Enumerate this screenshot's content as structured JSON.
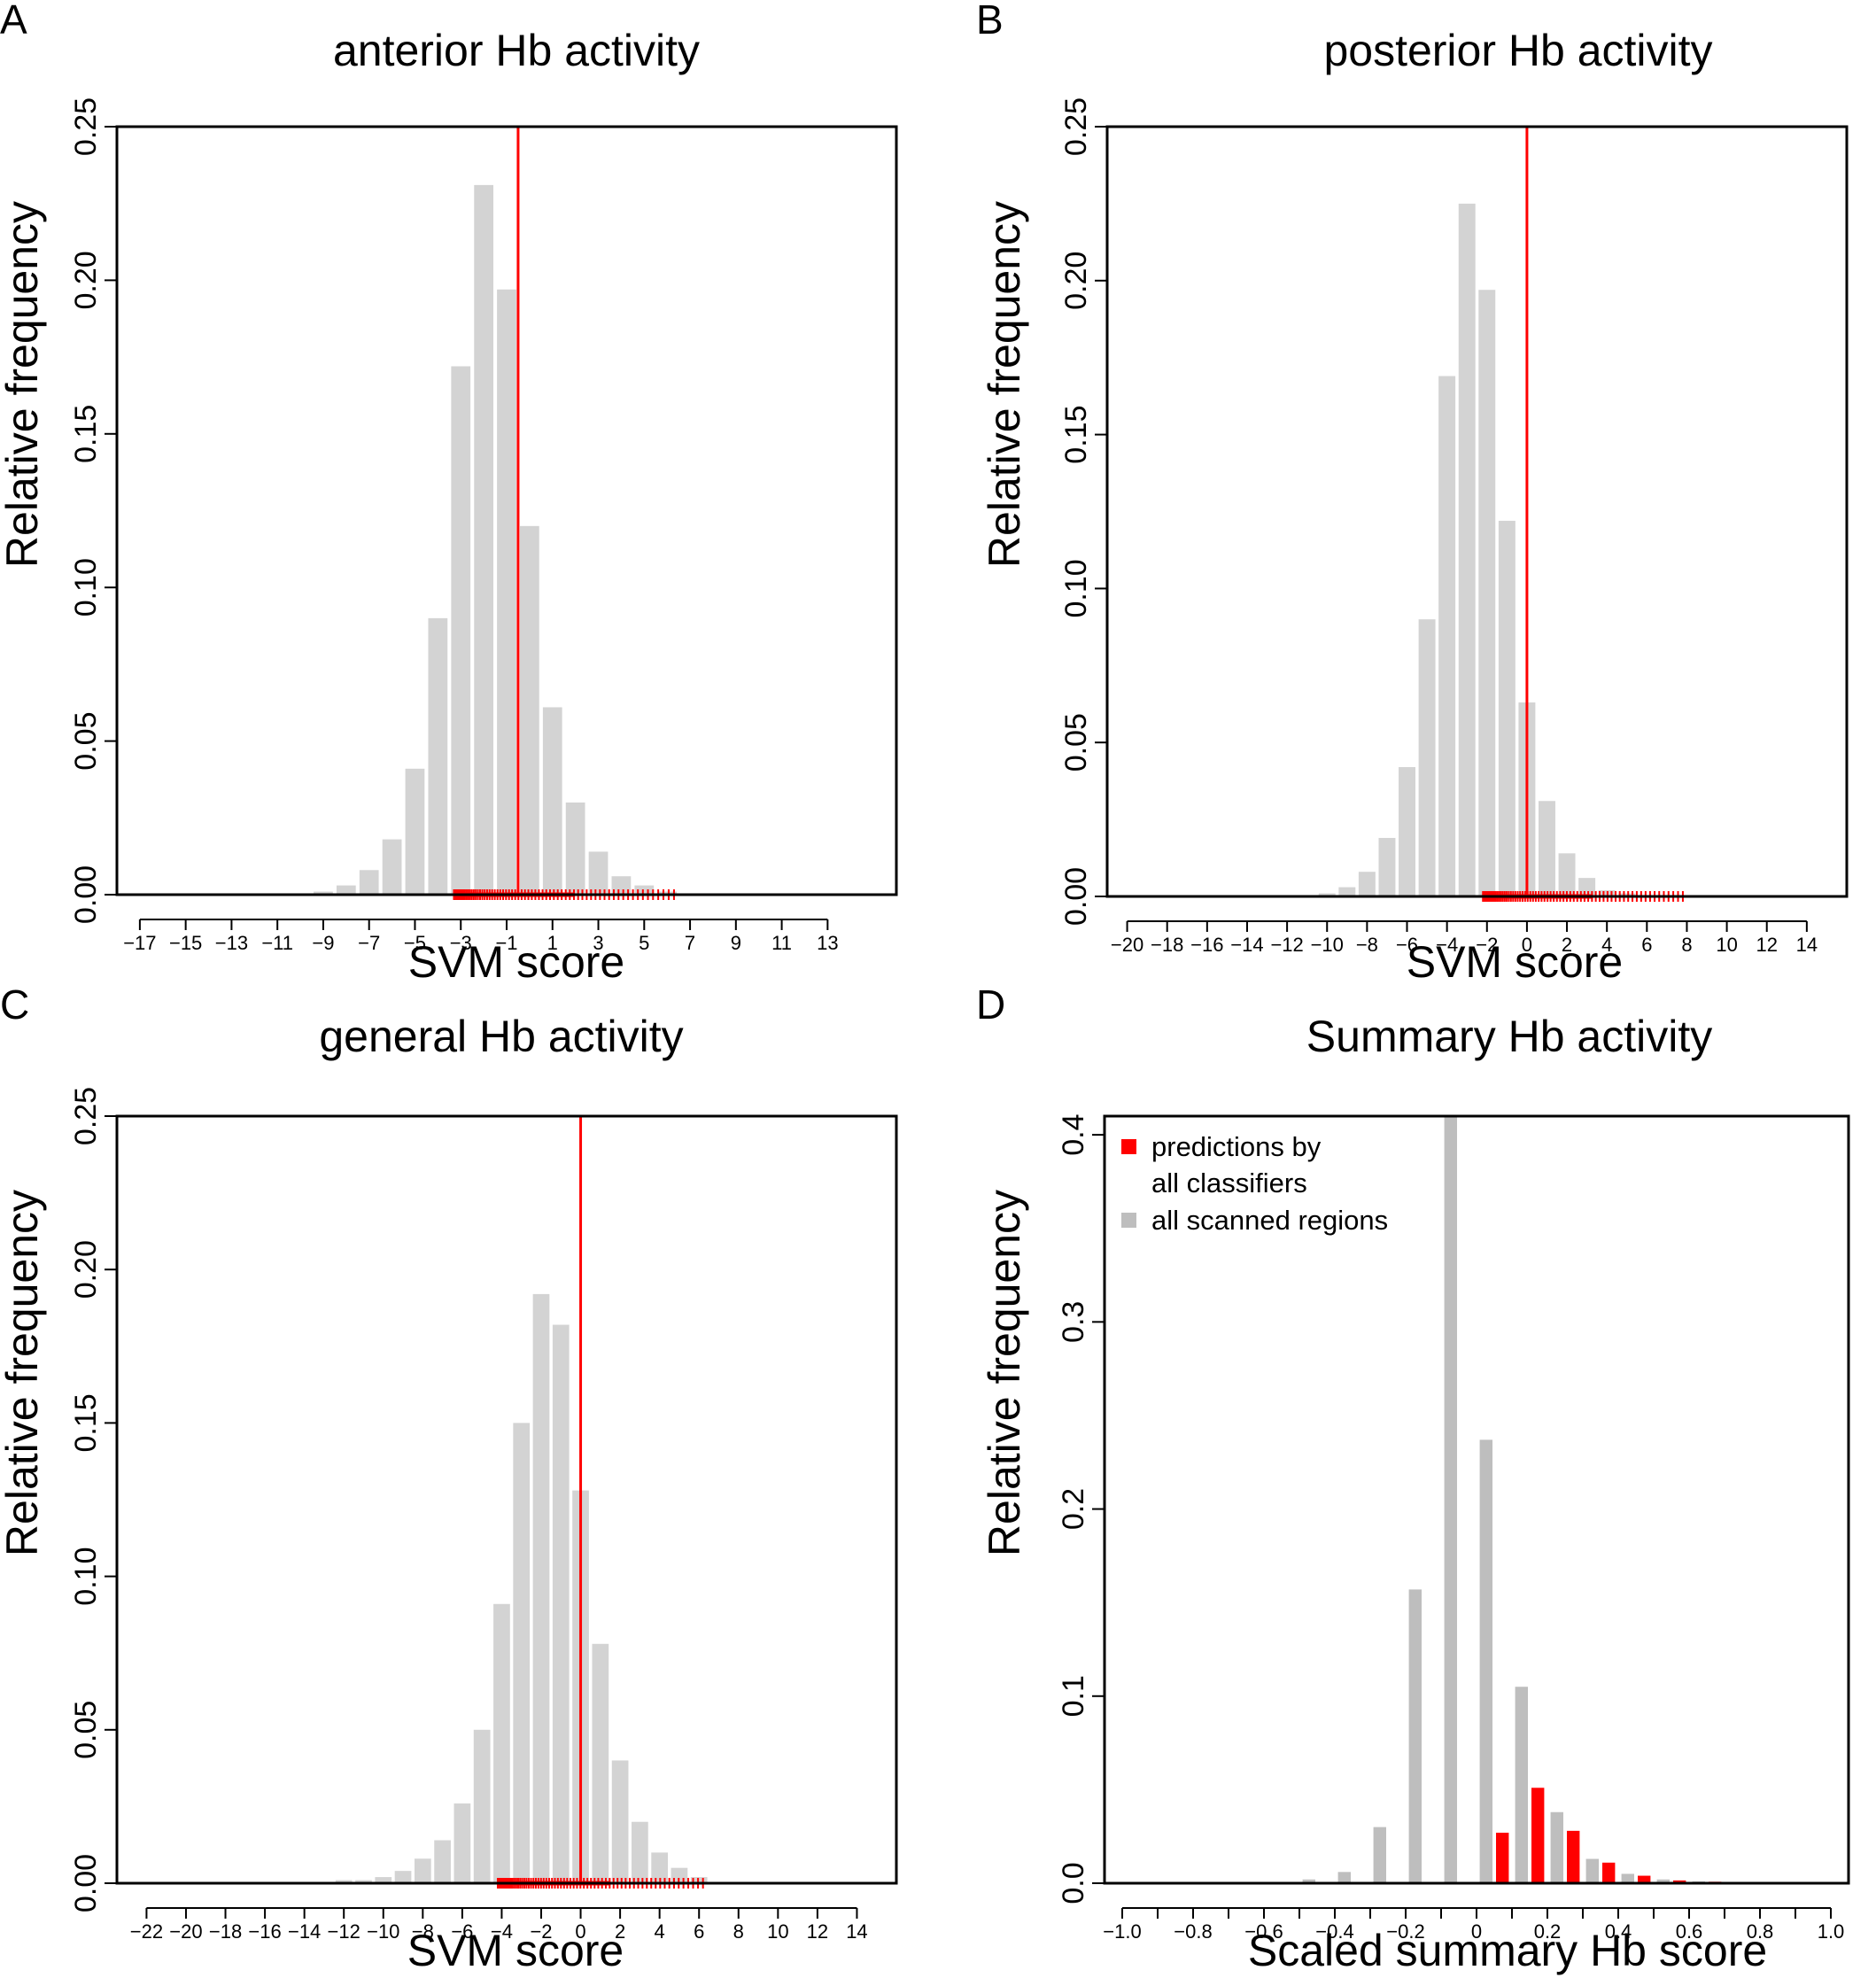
{
  "chart_data": [
    {
      "panel": "A",
      "type": "bar",
      "title": "anterior Hb activity",
      "xlabel": "SVM score",
      "ylabel": "Relative frequency",
      "ylim": [
        0,
        0.25
      ],
      "yticks": [
        "0.00",
        "0.05",
        "0.10",
        "0.15",
        "0.20",
        "0.25"
      ],
      "xlim": [
        -18,
        16
      ],
      "xticks": [
        -17,
        -15,
        -13,
        -11,
        -9,
        -7,
        -5,
        -3,
        -1,
        1,
        3,
        5,
        7,
        9,
        11,
        13
      ],
      "bins": [
        {
          "x": -9,
          "y": 0.001
        },
        {
          "x": -8,
          "y": 0.003
        },
        {
          "x": -7,
          "y": 0.008
        },
        {
          "x": -6,
          "y": 0.018
        },
        {
          "x": -5,
          "y": 0.041
        },
        {
          "x": -4,
          "y": 0.09
        },
        {
          "x": -3,
          "y": 0.172
        },
        {
          "x": -2,
          "y": 0.231
        },
        {
          "x": -1,
          "y": 0.197
        },
        {
          "x": 0,
          "y": 0.12
        },
        {
          "x": 1,
          "y": 0.061
        },
        {
          "x": 2,
          "y": 0.03
        },
        {
          "x": 3,
          "y": 0.014
        },
        {
          "x": 4,
          "y": 0.006
        },
        {
          "x": 5,
          "y": 0.003
        },
        {
          "x": 6,
          "y": 0.001
        }
      ],
      "threshold": -0.5,
      "rug_range": [
        -3.3,
        6.3
      ],
      "bar_color": "#d3d3d3",
      "marker_color": "#ff0000"
    },
    {
      "panel": "B",
      "type": "bar",
      "title": "posterior Hb activity",
      "xlabel": "SVM score",
      "ylabel": "Relative frequency",
      "ylim": [
        0,
        0.25
      ],
      "yticks": [
        "0.00",
        "0.05",
        "0.10",
        "0.15",
        "0.20",
        "0.25"
      ],
      "xlim": [
        -21,
        16
      ],
      "xticks": [
        -20,
        -18,
        -16,
        -14,
        -12,
        -10,
        -8,
        -6,
        -4,
        -2,
        0,
        2,
        4,
        6,
        8,
        10,
        12,
        14
      ],
      "bins": [
        {
          "x": -10,
          "y": 0.001
        },
        {
          "x": -9,
          "y": 0.003
        },
        {
          "x": -8,
          "y": 0.008
        },
        {
          "x": -7,
          "y": 0.019
        },
        {
          "x": -6,
          "y": 0.042
        },
        {
          "x": -5,
          "y": 0.09
        },
        {
          "x": -4,
          "y": 0.169
        },
        {
          "x": -3,
          "y": 0.225
        },
        {
          "x": -2,
          "y": 0.197
        },
        {
          "x": -1,
          "y": 0.122
        },
        {
          "x": 0,
          "y": 0.063
        },
        {
          "x": 1,
          "y": 0.031
        },
        {
          "x": 2,
          "y": 0.014
        },
        {
          "x": 3,
          "y": 0.006
        },
        {
          "x": 4,
          "y": 0.002
        },
        {
          "x": 5,
          "y": 0.001
        }
      ],
      "threshold": 0,
      "rug_range": [
        -2.2,
        7.8
      ],
      "bar_color": "#d3d3d3",
      "marker_color": "#ff0000"
    },
    {
      "panel": "C",
      "type": "bar",
      "title": "general Hb activity",
      "xlabel": "SVM score",
      "ylabel": "Relative frequency",
      "ylim": [
        0,
        0.25
      ],
      "yticks": [
        "0.00",
        "0.05",
        "0.10",
        "0.15",
        "0.20",
        "0.25"
      ],
      "xlim": [
        -23.5,
        16
      ],
      "xticks": [
        -22,
        -20,
        -18,
        -16,
        -14,
        -12,
        -10,
        -8,
        -6,
        -4,
        -2,
        0,
        2,
        4,
        6,
        8,
        10,
        12,
        14
      ],
      "bins": [
        {
          "x": -12,
          "y": 0.001
        },
        {
          "x": -11,
          "y": 0.001
        },
        {
          "x": -10,
          "y": 0.002
        },
        {
          "x": -9,
          "y": 0.004
        },
        {
          "x": -8,
          "y": 0.008
        },
        {
          "x": -7,
          "y": 0.014
        },
        {
          "x": -6,
          "y": 0.026
        },
        {
          "x": -5,
          "y": 0.05
        },
        {
          "x": -4,
          "y": 0.091
        },
        {
          "x": -3,
          "y": 0.15
        },
        {
          "x": -2,
          "y": 0.192
        },
        {
          "x": -1,
          "y": 0.182
        },
        {
          "x": 0,
          "y": 0.128
        },
        {
          "x": 1,
          "y": 0.078
        },
        {
          "x": 2,
          "y": 0.04
        },
        {
          "x": 3,
          "y": 0.02
        },
        {
          "x": 4,
          "y": 0.01
        },
        {
          "x": 5,
          "y": 0.005
        },
        {
          "x": 6,
          "y": 0.002
        }
      ],
      "threshold": 0,
      "rug_range": [
        -4.2,
        6.2
      ],
      "bar_color": "#d3d3d3",
      "marker_color": "#ff0000"
    },
    {
      "panel": "D",
      "type": "bar",
      "title": "Summary Hb activity",
      "xlabel": "Scaled summary Hb score",
      "ylabel": "Relative frequency",
      "ylim": [
        0,
        0.41
      ],
      "yticks": [
        "0.0",
        "0.1",
        "0.2",
        "0.3",
        "0.4"
      ],
      "xlim": [
        -1.05,
        1.05
      ],
      "xticks": [
        "−1.0",
        "",
        "−0.8",
        "",
        "−0.6",
        "",
        "−0.4",
        "",
        "−0.2",
        "",
        "0",
        "",
        "0.2",
        "",
        "0.4",
        "",
        "0.6",
        "",
        "0.8",
        "",
        "1.0"
      ],
      "categories": [
        -0.95,
        -0.85,
        -0.75,
        -0.65,
        -0.55,
        -0.45,
        -0.35,
        -0.25,
        -0.15,
        -0.05,
        0.05,
        0.15,
        0.25,
        0.35,
        0.45,
        0.55,
        0.65,
        0.75,
        0.85,
        0.95
      ],
      "series": [
        {
          "name": "all scanned regions",
          "color": "#bebebe",
          "values": [
            0,
            0,
            0,
            0,
            0.0005,
            0.002,
            0.006,
            0.03,
            0.157,
            0.41,
            0.237,
            0.105,
            0.038,
            0.013,
            0.005,
            0.002,
            0.001,
            0.0005,
            0,
            0
          ]
        },
        {
          "name": "predictions by all classifiers",
          "color": "#ff0000",
          "values": [
            0,
            0,
            0,
            0,
            0,
            0,
            0,
            0,
            0,
            0,
            0.027,
            0.051,
            0.028,
            0.011,
            0.004,
            0.0015,
            0.0008,
            0.0003,
            0,
            0
          ]
        }
      ],
      "legend": {
        "position": "top-left",
        "entries": [
          "predictions by",
          "all classifiers",
          "all scanned regions"
        ]
      }
    }
  ]
}
